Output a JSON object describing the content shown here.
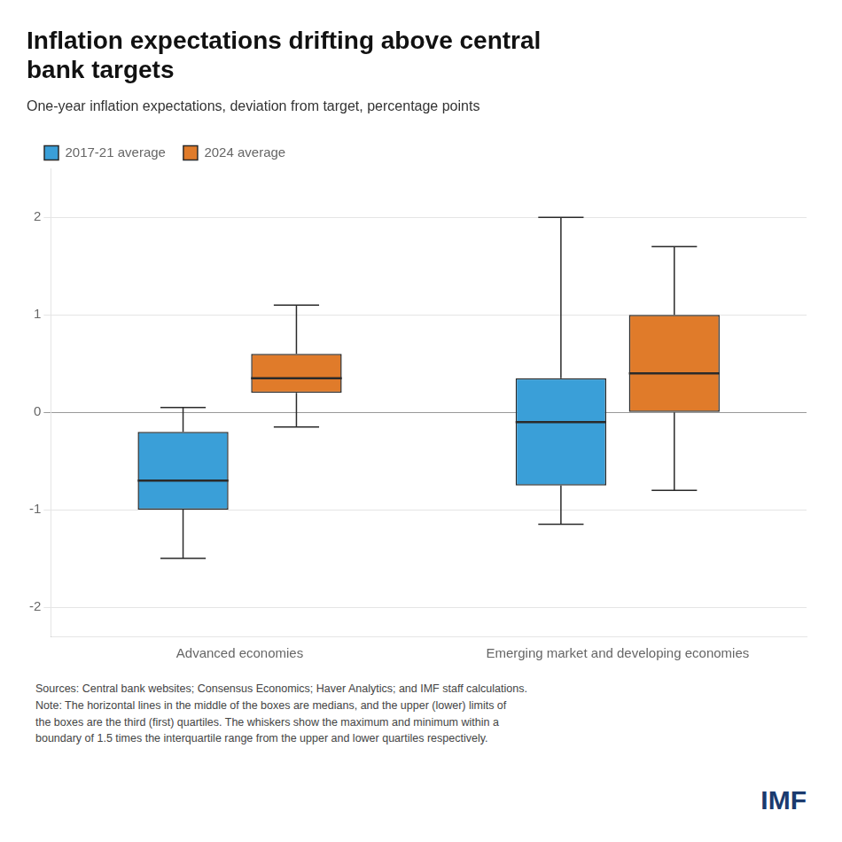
{
  "chart_data": {
    "type": "box",
    "title": "Inflation expectations drifting above central\nbank targets",
    "subtitle": "One-year inflation expectations, deviation from target, percentage points",
    "categories": [
      "Advanced economies",
      "Emerging market and developing economies"
    ],
    "series": [
      {
        "name": "2017-21 average",
        "color": "#3a9fd8",
        "values": [
          {
            "low": -1.5,
            "q1": -1.0,
            "median": -0.7,
            "q3": -0.2,
            "high": 0.05
          },
          {
            "low": -1.15,
            "q1": -0.75,
            "median": -0.1,
            "q3": 0.35,
            "high": 2.0
          }
        ]
      },
      {
        "name": "2024 average",
        "color": "#e07b2a",
        "values": [
          {
            "low": -0.15,
            "q1": 0.2,
            "median": 0.35,
            "q3": 0.6,
            "high": 1.1
          },
          {
            "low": -0.8,
            "q1": 0.0,
            "median": 0.4,
            "q3": 1.0,
            "high": 1.7
          }
        ]
      }
    ],
    "ylim": [
      -2.3,
      2.5
    ],
    "yticks": [
      -2,
      -1,
      0,
      1,
      2
    ],
    "grid": true,
    "legend": "upper left",
    "footnote": "Sources: Central bank websites; Consensus Economics; Haver Analytics; and IMF staff calculations.\nNote: The horizontal lines in the middle of the boxes are medians, and the upper (lower) limits of\nthe boxes are the third (first) quartiles. The whiskers show the maximum and minimum within a\nboundary of 1.5 times the interquartile range from the upper and lower quartiles respectively.",
    "annotations": [
      "IMF"
    ]
  }
}
